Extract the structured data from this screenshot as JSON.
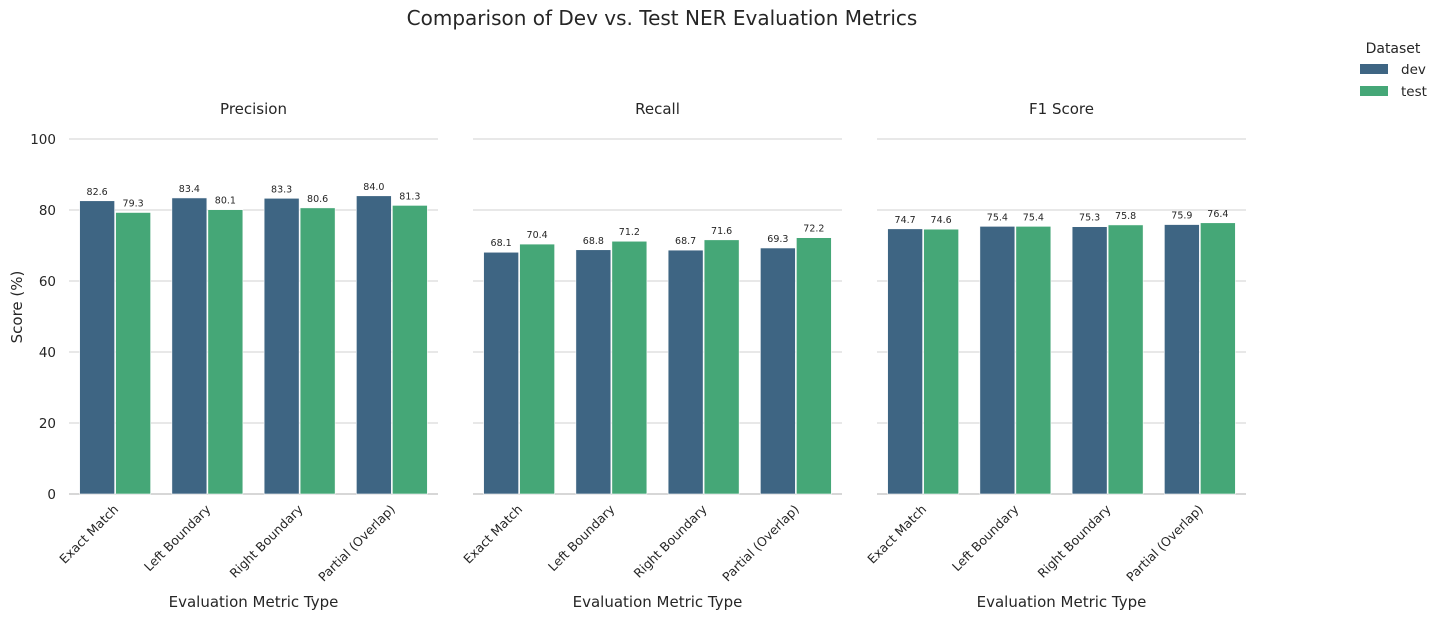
{
  "chart_data": {
    "type": "bar",
    "title": "Comparison of Dev vs. Test NER Evaluation Metrics",
    "ylabel": "Score (%)",
    "xlabel": "Evaluation Metric Type",
    "ylim": [
      0,
      100
    ],
    "yticks": [
      "0",
      "20",
      "40",
      "60",
      "80",
      "100"
    ],
    "grid": "horizontal",
    "legend": {
      "title": "Dataset",
      "placement": "top-right",
      "entries": [
        {
          "name": "dev",
          "color": "#3e6583"
        },
        {
          "name": "test",
          "color": "#45a777"
        }
      ]
    },
    "categories": [
      "Exact Match",
      "Left Boundary",
      "Right Boundary",
      "Partial (Overlap)"
    ],
    "panels": [
      {
        "title": "Precision",
        "series": [
          {
            "name": "dev",
            "values": [
              82.6,
              83.4,
              83.3,
              84.0
            ],
            "labels": [
              "82.6",
              "83.4",
              "83.3",
              "84.0"
            ]
          },
          {
            "name": "test",
            "values": [
              79.3,
              80.1,
              80.6,
              81.3
            ],
            "labels": [
              "79.3",
              "80.1",
              "80.6",
              "81.3"
            ]
          }
        ]
      },
      {
        "title": "Recall",
        "series": [
          {
            "name": "dev",
            "values": [
              68.1,
              68.8,
              68.7,
              69.3
            ],
            "labels": [
              "68.1",
              "68.8",
              "68.7",
              "69.3"
            ]
          },
          {
            "name": "test",
            "values": [
              70.4,
              71.2,
              71.6,
              72.2
            ],
            "labels": [
              "70.4",
              "71.2",
              "71.6",
              "72.2"
            ]
          }
        ]
      },
      {
        "title": "F1 Score",
        "series": [
          {
            "name": "dev",
            "values": [
              74.7,
              75.4,
              75.3,
              75.9
            ],
            "labels": [
              "74.7",
              "75.4",
              "75.3",
              "75.9"
            ]
          },
          {
            "name": "test",
            "values": [
              74.6,
              75.4,
              75.8,
              76.4
            ],
            "labels": [
              "74.6",
              "75.4",
              "75.8",
              "76.4"
            ]
          }
        ]
      }
    ]
  }
}
